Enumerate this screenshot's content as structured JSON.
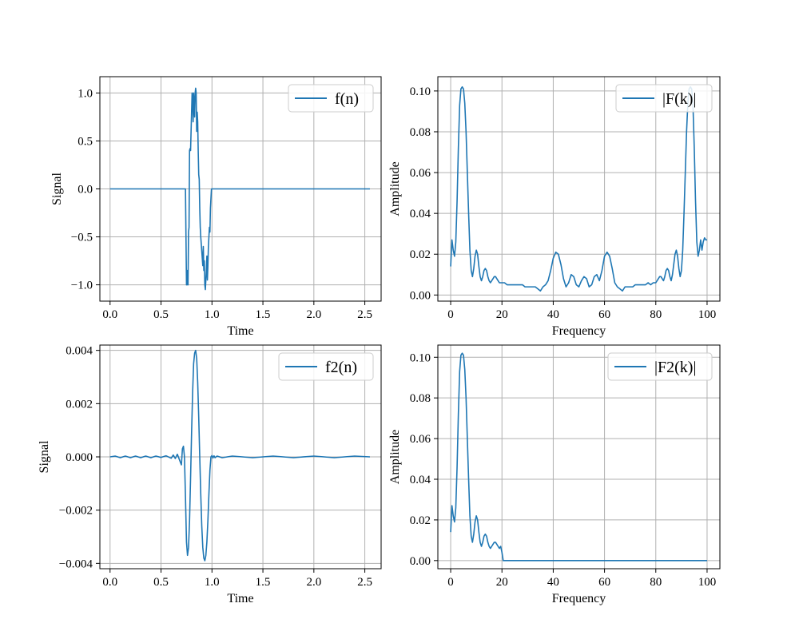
{
  "figure": {
    "background": "#ffffff"
  },
  "chart_data": [
    {
      "type": "line",
      "xlabel": "Time",
      "ylabel": "Signal",
      "xlim": [
        -0.1,
        2.66
      ],
      "ylim": [
        -1.17,
        1.17
      ],
      "xticks": [
        0.0,
        0.5,
        1.0,
        1.5,
        2.0,
        2.5
      ],
      "xtick_labels": [
        "0.0",
        "0.5",
        "1.0",
        "1.5",
        "2.0",
        "2.5"
      ],
      "yticks": [
        -1.0,
        -0.5,
        0.0,
        0.5,
        1.0
      ],
      "ytick_labels": [
        "−1.0",
        "−0.5",
        "0.0",
        "0.5",
        "1.0"
      ],
      "grid": true,
      "legend_position": "upper right",
      "series": [
        {
          "name": "f(n)",
          "color": "#1f77b4",
          "x": [
            0.0,
            0.73,
            0.74,
            0.75,
            0.755,
            0.76,
            0.765,
            0.77,
            0.775,
            0.78,
            0.785,
            0.79,
            0.8,
            0.805,
            0.81,
            0.815,
            0.82,
            0.825,
            0.83,
            0.835,
            0.84,
            0.845,
            0.85,
            0.855,
            0.86,
            0.865,
            0.87,
            0.875,
            0.88,
            0.885,
            0.89,
            0.9,
            0.91,
            0.915,
            0.92,
            0.925,
            0.93,
            0.935,
            0.94,
            0.945,
            0.95,
            0.955,
            0.96,
            0.965,
            0.97,
            0.975,
            0.98,
            0.985,
            0.99,
            0.995,
            1.0,
            2.55
          ],
          "y": [
            0.0,
            0.0,
            0.0,
            -1.0,
            -1.0,
            -0.85,
            -1.0,
            -0.45,
            -0.4,
            0.4,
            0.42,
            0.4,
            0.8,
            1.0,
            0.95,
            0.7,
            1.0,
            0.9,
            0.75,
            1.0,
            1.05,
            1.0,
            0.6,
            0.8,
            0.7,
            0.4,
            0.15,
            0.1,
            -0.2,
            -0.4,
            -0.5,
            -0.65,
            -0.8,
            -0.6,
            -0.85,
            -0.75,
            -1.0,
            -1.05,
            -0.95,
            -0.85,
            -0.7,
            -0.95,
            -0.8,
            -0.6,
            -0.5,
            -0.4,
            -0.45,
            -0.2,
            -0.1,
            0.0,
            0.0,
            0.0
          ]
        }
      ]
    },
    {
      "type": "line",
      "xlabel": "Frequency",
      "ylabel": "Amplitude",
      "xlim": [
        -5,
        105
      ],
      "ylim": [
        -0.003,
        0.107
      ],
      "xticks": [
        0,
        20,
        40,
        60,
        80,
        100
      ],
      "xtick_labels": [
        "0",
        "20",
        "40",
        "60",
        "80",
        "100"
      ],
      "yticks": [
        0.0,
        0.02,
        0.04,
        0.06,
        0.08,
        0.1
      ],
      "ytick_labels": [
        "0.00",
        "0.02",
        "0.04",
        "0.06",
        "0.08",
        "0.10"
      ],
      "grid": true,
      "legend_position": "upper right",
      "series": [
        {
          "name": "|F(k)|",
          "color": "#1f77b4",
          "x": [
            0,
            0.5,
            1,
            1.5,
            2,
            2.5,
            3,
            3.5,
            4,
            4.5,
            5,
            5.5,
            6,
            6.5,
            7,
            7.5,
            8,
            8.5,
            9,
            9.5,
            10,
            10.5,
            11,
            11.5,
            12,
            12.5,
            13,
            13.5,
            14,
            14.5,
            15,
            15.5,
            16,
            16.5,
            17,
            17.5,
            18,
            18.5,
            19,
            19.5,
            20,
            21,
            22,
            23,
            24,
            25,
            26,
            27,
            28,
            29,
            30,
            31,
            32,
            33,
            34,
            35,
            36,
            37,
            38,
            39,
            40,
            41,
            42,
            43,
            44,
            45,
            46,
            47,
            48,
            49,
            50,
            51,
            52,
            53,
            54,
            55,
            56,
            57,
            58,
            59,
            60,
            61,
            62,
            63,
            64,
            65,
            66,
            67,
            68,
            69,
            70,
            71,
            72,
            73,
            74,
            75,
            76,
            77,
            78,
            79,
            80,
            80.5,
            81,
            81.5,
            82,
            82.5,
            83,
            83.5,
            84,
            84.5,
            85,
            85.5,
            86,
            86.5,
            87,
            87.5,
            88,
            88.5,
            89,
            89.5,
            90,
            90.5,
            91,
            91.5,
            92,
            92.5,
            93,
            93.5,
            94,
            94.5,
            95,
            95.5,
            96,
            96.5,
            97,
            97.5,
            98,
            98.5,
            99,
            99.5,
            100
          ],
          "y": [
            0.014,
            0.027,
            0.022,
            0.019,
            0.026,
            0.046,
            0.072,
            0.093,
            0.101,
            0.102,
            0.101,
            0.094,
            0.08,
            0.06,
            0.04,
            0.022,
            0.012,
            0.009,
            0.013,
            0.019,
            0.022,
            0.02,
            0.014,
            0.009,
            0.007,
            0.009,
            0.012,
            0.013,
            0.012,
            0.009,
            0.007,
            0.006,
            0.007,
            0.008,
            0.009,
            0.009,
            0.008,
            0.007,
            0.006,
            0.006,
            0.006,
            0.006,
            0.005,
            0.005,
            0.005,
            0.005,
            0.005,
            0.005,
            0.005,
            0.004,
            0.004,
            0.004,
            0.004,
            0.004,
            0.003,
            0.002,
            0.004,
            0.005,
            0.007,
            0.012,
            0.018,
            0.021,
            0.02,
            0.015,
            0.008,
            0.004,
            0.006,
            0.01,
            0.009,
            0.005,
            0.004,
            0.007,
            0.009,
            0.008,
            0.004,
            0.005,
            0.009,
            0.01,
            0.007,
            0.012,
            0.019,
            0.021,
            0.019,
            0.013,
            0.006,
            0.004,
            0.003,
            0.002,
            0.004,
            0.004,
            0.004,
            0.004,
            0.005,
            0.005,
            0.005,
            0.005,
            0.005,
            0.006,
            0.005,
            0.006,
            0.006,
            0.007,
            0.008,
            0.009,
            0.009,
            0.008,
            0.007,
            0.009,
            0.012,
            0.013,
            0.012,
            0.009,
            0.007,
            0.01,
            0.015,
            0.02,
            0.022,
            0.019,
            0.013,
            0.009,
            0.012,
            0.022,
            0.04,
            0.06,
            0.08,
            0.094,
            0.101,
            0.102,
            0.101,
            0.093,
            0.072,
            0.046,
            0.026,
            0.019,
            0.022,
            0.027,
            0.022,
            0.026,
            0.028,
            0.027,
            0.027
          ]
        }
      ]
    },
    {
      "type": "line",
      "xlabel": "Time",
      "ylabel": "Signal",
      "xlim": [
        -0.1,
        2.66
      ],
      "ylim": [
        -0.0042,
        0.0042
      ],
      "xticks": [
        0.0,
        0.5,
        1.0,
        1.5,
        2.0,
        2.5
      ],
      "xtick_labels": [
        "0.0",
        "0.5",
        "1.0",
        "1.5",
        "2.0",
        "2.5"
      ],
      "yticks": [
        -0.004,
        -0.002,
        0.0,
        0.002,
        0.004
      ],
      "ytick_labels": [
        "−0.004",
        "−0.002",
        "0.000",
        "0.002",
        "0.004"
      ],
      "grid": true,
      "legend_position": "upper right",
      "series": [
        {
          "name": "f2(n)",
          "color": "#1f77b4",
          "x": [
            0.0,
            0.05,
            0.1,
            0.15,
            0.2,
            0.25,
            0.3,
            0.35,
            0.4,
            0.45,
            0.5,
            0.55,
            0.6,
            0.62,
            0.64,
            0.66,
            0.68,
            0.7,
            0.71,
            0.72,
            0.73,
            0.74,
            0.75,
            0.76,
            0.77,
            0.78,
            0.79,
            0.8,
            0.81,
            0.82,
            0.83,
            0.84,
            0.85,
            0.86,
            0.87,
            0.88,
            0.89,
            0.9,
            0.91,
            0.92,
            0.93,
            0.94,
            0.95,
            0.96,
            0.97,
            0.98,
            0.99,
            1.0,
            1.01,
            1.02,
            1.03,
            1.05,
            1.1,
            1.2,
            1.4,
            1.6,
            1.8,
            2.0,
            2.2,
            2.4,
            2.55
          ],
          "y": [
            0.0,
            3e-05,
            -3e-05,
            3e-05,
            -3e-05,
            3e-05,
            -3e-05,
            3e-05,
            -3e-05,
            3e-05,
            -2e-05,
            4e-05,
            -5e-05,
            7e-05,
            -6e-05,
            0.0001,
            -0.0001,
            -0.0003,
            0.0003,
            0.0004,
            0.0,
            -0.0015,
            -0.0032,
            -0.0037,
            -0.0034,
            -0.0024,
            -0.0008,
            0.0009,
            0.0024,
            0.0035,
            0.0039,
            0.004,
            0.0037,
            0.0028,
            0.0015,
            0.0,
            -0.0014,
            -0.0026,
            -0.0034,
            -0.0038,
            -0.0039,
            -0.0037,
            -0.0032,
            -0.0024,
            -0.0014,
            -0.0005,
            0.0,
            5e-05,
            -4e-05,
            4e-05,
            -3e-05,
            3e-05,
            -3e-05,
            3e-05,
            -3e-05,
            3e-05,
            -3e-05,
            3e-05,
            -3e-05,
            3e-05,
            0.0
          ]
        }
      ]
    },
    {
      "type": "line",
      "xlabel": "Frequency",
      "ylabel": "Amplitude",
      "xlim": [
        -5,
        105
      ],
      "ylim": [
        -0.004,
        0.106
      ],
      "xticks": [
        0,
        20,
        40,
        60,
        80,
        100
      ],
      "xtick_labels": [
        "0",
        "20",
        "40",
        "60",
        "80",
        "100"
      ],
      "yticks": [
        0.0,
        0.02,
        0.04,
        0.06,
        0.08,
        0.1
      ],
      "ytick_labels": [
        "0.00",
        "0.02",
        "0.04",
        "0.06",
        "0.08",
        "0.10"
      ],
      "grid": true,
      "legend_position": "upper right",
      "series": [
        {
          "name": "|F2(k)|",
          "color": "#1f77b4",
          "x": [
            0,
            0.5,
            1,
            1.5,
            2,
            2.5,
            3,
            3.5,
            4,
            4.5,
            5,
            5.5,
            6,
            6.5,
            7,
            7.5,
            8,
            8.5,
            9,
            9.5,
            10,
            10.5,
            11,
            11.5,
            12,
            12.5,
            13,
            13.5,
            14,
            14.5,
            15,
            15.5,
            16,
            16.5,
            17,
            17.5,
            18,
            18.5,
            19,
            19.5,
            20,
            20.5,
            21,
            30,
            40,
            50,
            60,
            70,
            80,
            90,
            100
          ],
          "y": [
            0.014,
            0.027,
            0.022,
            0.019,
            0.026,
            0.046,
            0.072,
            0.093,
            0.101,
            0.102,
            0.101,
            0.094,
            0.08,
            0.06,
            0.04,
            0.022,
            0.012,
            0.009,
            0.013,
            0.019,
            0.022,
            0.02,
            0.014,
            0.009,
            0.007,
            0.009,
            0.012,
            0.013,
            0.012,
            0.009,
            0.007,
            0.006,
            0.007,
            0.008,
            0.009,
            0.009,
            0.008,
            0.007,
            0.006,
            0.007,
            0.004,
            0.0,
            0.0,
            0.0,
            0.0,
            0.0,
            0.0,
            0.0,
            0.0,
            0.0,
            0.0
          ]
        }
      ]
    }
  ]
}
